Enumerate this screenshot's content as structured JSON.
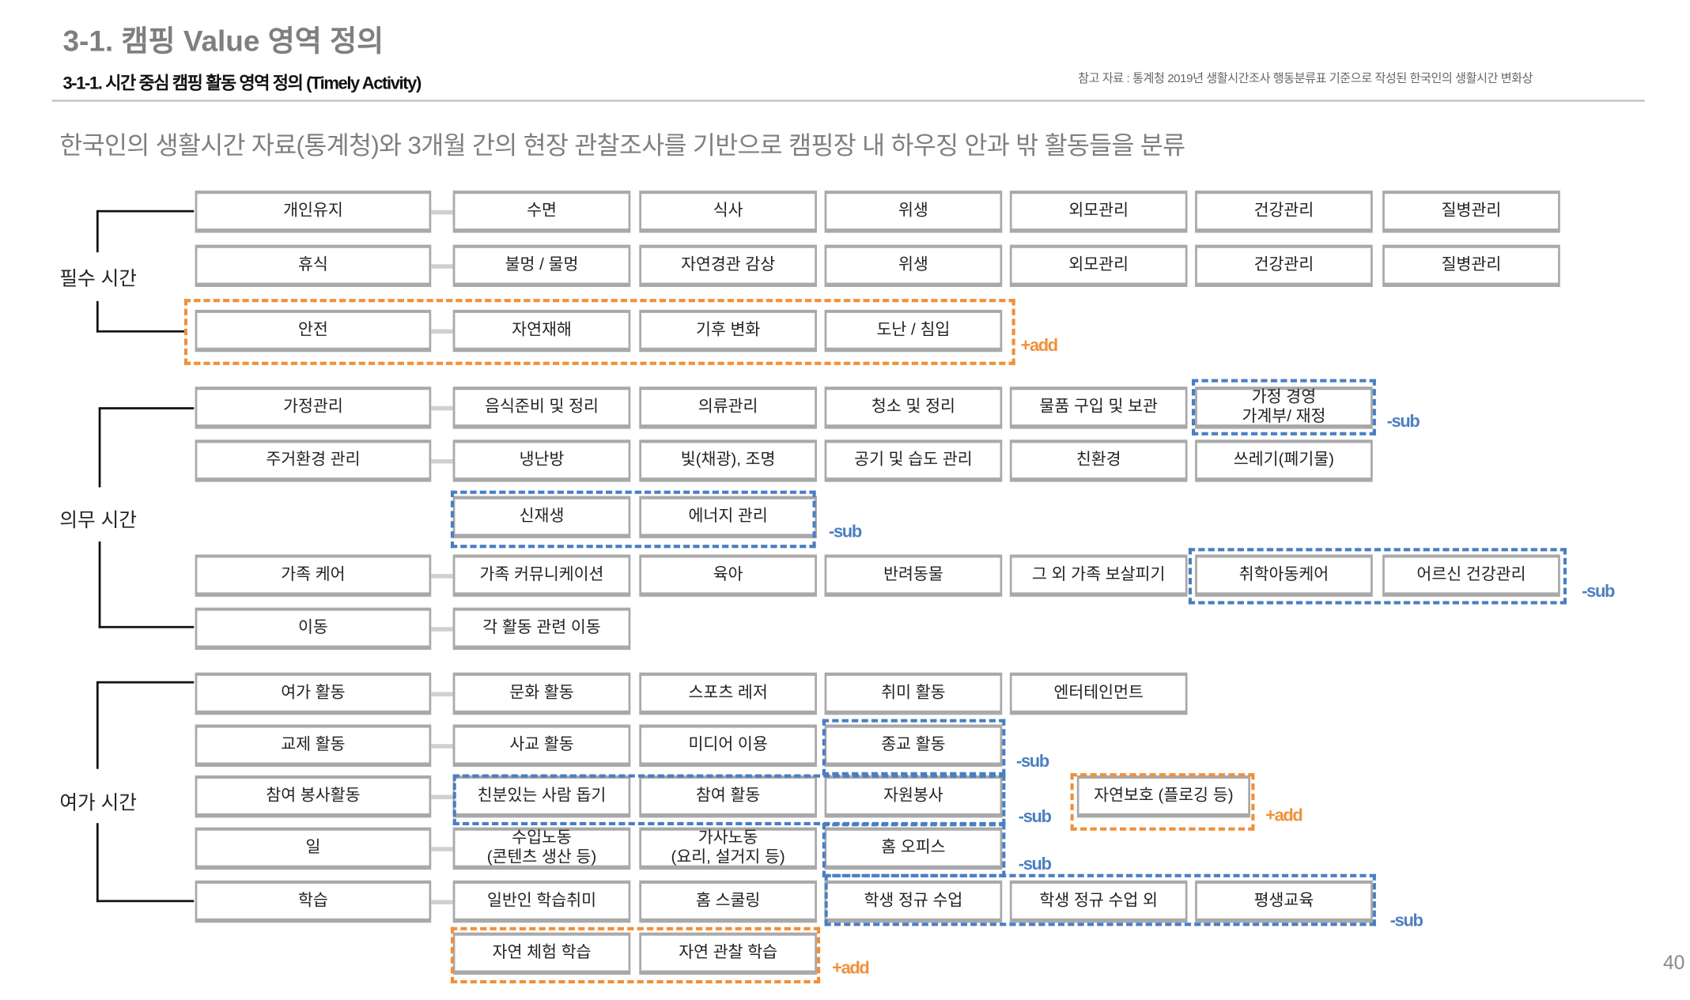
{
  "header": {
    "title": "3-1. 캠핑 Value 영역 정의",
    "subtitle": "3-1-1. 시간 중심 캠핑 활동 영역 정의 (Timely Activity)",
    "reference": "참고 자료 : 통계청 2019년 생활시간조사 행동분류표 기준으로 작성된 한국인의 생활시간 변화상",
    "intro": "한국인의 생활시간 자료(통계청)와 3개월 간의 현장 관찰조사를 기반으로 캠핑장 내 하우징 안과 밖 활동들을 분류"
  },
  "groups": [
    {
      "label": "필수 시간"
    },
    {
      "label": "의무 시간"
    },
    {
      "label": "여가 시간"
    }
  ],
  "rows": [
    {
      "main": "개인유지",
      "items": [
        "수면",
        "식사",
        "위생",
        "외모관리",
        "건강관리",
        "질병관리"
      ]
    },
    {
      "main": "휴식",
      "items": [
        "불멍 / 물멍",
        "자연경관 감상",
        "위생",
        "외모관리",
        "건강관리",
        "질병관리"
      ]
    },
    {
      "main": "안전",
      "items": [
        "자연재해",
        "기후 변화",
        "도난 / 침입"
      ]
    },
    {
      "main": "가정관리",
      "items": [
        "음식준비 및 정리",
        "의류관리",
        "청소 및 정리",
        "물품 구입 및 보관",
        "가정 경영\n가계부/ 재정"
      ]
    },
    {
      "main": "주거환경 관리",
      "items": [
        "냉난방",
        "빛(채광), 조명",
        "공기 및 습도 관리",
        "친환경",
        "쓰레기(폐기물)"
      ]
    },
    {
      "main": "",
      "items": [
        "신재생",
        "에너지 관리"
      ]
    },
    {
      "main": "가족 케어",
      "items": [
        "가족 커뮤니케이션",
        "육아",
        "반려동물",
        "그 외 가족 보살피기",
        "취학아동케어",
        "어르신 건강관리"
      ]
    },
    {
      "main": "이동",
      "items": [
        "각 활동 관련 이동"
      ]
    },
    {
      "main": "여가 활동",
      "items": [
        "문화 활동",
        "스포츠 레저",
        "취미 활동",
        "엔터테인먼트"
      ]
    },
    {
      "main": "교제 활동",
      "items": [
        "사교 활동",
        "미디어 이용",
        "종교 활동"
      ]
    },
    {
      "main": "참여 봉사활동",
      "items": [
        "친분있는 사람 돕기",
        "참여 활동",
        "자원봉사",
        "",
        "자연보호 (플로깅 등)"
      ]
    },
    {
      "main": "일",
      "items": [
        "수입노동\n(콘텐츠 생산 등)",
        "가사노동\n(요리, 설거지 등)",
        "홈 오피스"
      ]
    },
    {
      "main": "학습",
      "items": [
        "일반인 학습취미",
        "홈 스쿨링",
        "학생 정규 수업",
        "학생 정규 수업 외",
        "평생교육"
      ]
    },
    {
      "main": "",
      "items": [
        "자연 체험 학습",
        "자연 관찰 학습"
      ]
    }
  ],
  "annotations": [
    {
      "type": "add",
      "label": "+add"
    },
    {
      "type": "sub",
      "label": "-sub"
    },
    {
      "type": "sub",
      "label": "-sub"
    },
    {
      "type": "sub",
      "label": "-sub"
    },
    {
      "type": "sub",
      "label": "-sub"
    },
    {
      "type": "sub",
      "label": "-sub"
    },
    {
      "type": "sub",
      "label": "-sub"
    },
    {
      "type": "sub",
      "label": "-sub"
    },
    {
      "type": "add",
      "label": "+add"
    },
    {
      "type": "add",
      "label": "+add"
    }
  ],
  "colors": {
    "add": "#f0903a",
    "sub": "#4a7fc1",
    "box_border": "#a9a9a9"
  },
  "page_number": "40"
}
